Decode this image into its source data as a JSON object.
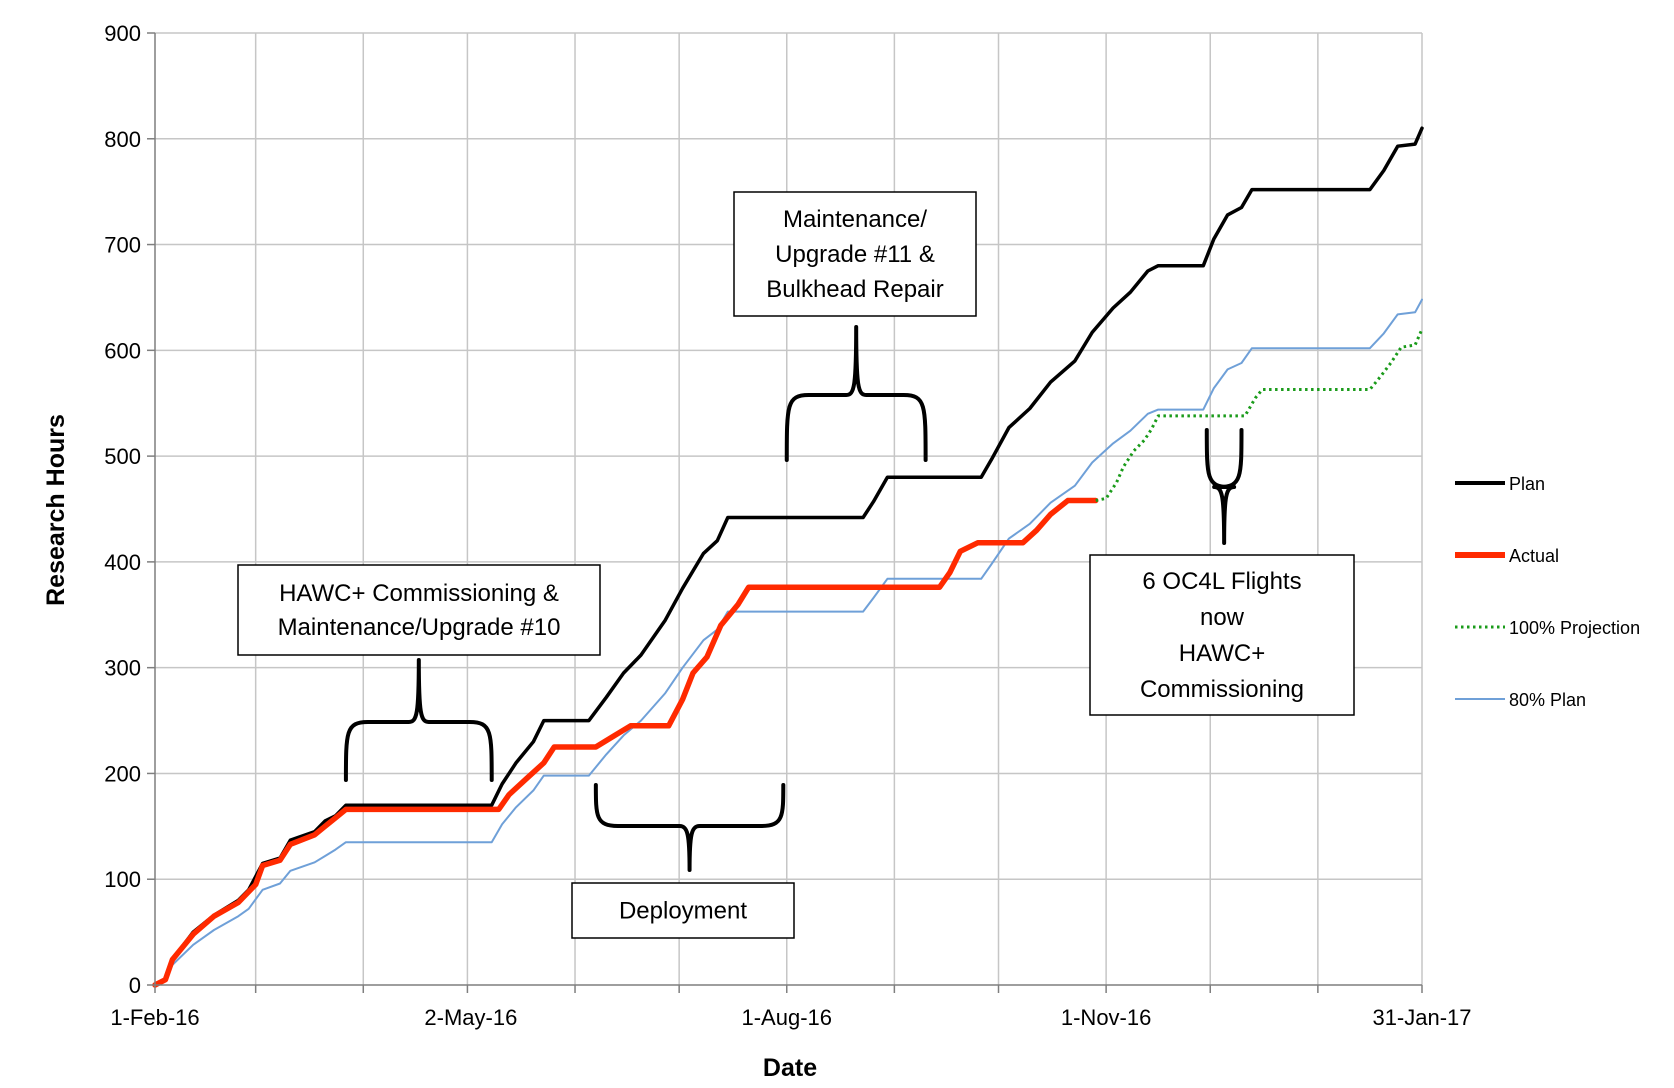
{
  "chart_data": {
    "type": "line",
    "xlabel": "Date",
    "ylabel": "Research Hours",
    "xlim": [
      "2016-02-01",
      "2017-01-31"
    ],
    "ylim": [
      0,
      900
    ],
    "y_ticks": [
      0,
      100,
      200,
      300,
      400,
      500,
      600,
      700,
      800,
      900
    ],
    "x_ticks": [
      {
        "date": "2016-02-01",
        "label": "1-Feb-16"
      },
      {
        "date": "2016-05-02",
        "label": "2-May-16"
      },
      {
        "date": "2016-08-01",
        "label": "1-Aug-16"
      },
      {
        "date": "2016-11-01",
        "label": "1-Nov-16"
      },
      {
        "date": "2017-01-31",
        "label": "31-Jan-17"
      }
    ],
    "grid": true,
    "legend_position": "right",
    "series": [
      {
        "name": "Plan",
        "color": "#000000",
        "style": "solid",
        "points": [
          [
            "2016-02-01",
            0
          ],
          [
            "2016-02-04",
            5
          ],
          [
            "2016-02-06",
            24
          ],
          [
            "2016-02-12",
            50
          ],
          [
            "2016-02-18",
            66
          ],
          [
            "2016-02-25",
            80
          ],
          [
            "2016-02-28",
            90
          ],
          [
            "2016-03-03",
            115
          ],
          [
            "2016-03-08",
            120
          ],
          [
            "2016-03-11",
            137
          ],
          [
            "2016-03-18",
            145
          ],
          [
            "2016-03-21",
            155
          ],
          [
            "2016-03-24",
            160
          ],
          [
            "2016-03-27",
            170
          ],
          [
            "2016-05-08",
            170
          ],
          [
            "2016-05-11",
            190
          ],
          [
            "2016-05-15",
            210
          ],
          [
            "2016-05-20",
            230
          ],
          [
            "2016-05-23",
            250
          ],
          [
            "2016-06-05",
            250
          ],
          [
            "2016-06-10",
            272
          ],
          [
            "2016-06-15",
            295
          ],
          [
            "2016-06-20",
            312
          ],
          [
            "2016-06-27",
            345
          ],
          [
            "2016-07-02",
            375
          ],
          [
            "2016-07-08",
            408
          ],
          [
            "2016-07-12",
            420
          ],
          [
            "2016-07-15",
            442
          ],
          [
            "2016-08-23",
            442
          ],
          [
            "2016-08-26",
            457
          ],
          [
            "2016-08-30",
            480
          ],
          [
            "2016-09-26",
            480
          ],
          [
            "2016-09-29",
            497
          ],
          [
            "2016-10-04",
            527
          ],
          [
            "2016-10-10",
            545
          ],
          [
            "2016-10-16",
            570
          ],
          [
            "2016-10-23",
            590
          ],
          [
            "2016-10-28",
            617
          ],
          [
            "2016-11-03",
            640
          ],
          [
            "2016-11-08",
            655
          ],
          [
            "2016-11-13",
            675
          ],
          [
            "2016-11-16",
            680
          ],
          [
            "2016-11-29",
            680
          ],
          [
            "2016-12-02",
            705
          ],
          [
            "2016-12-06",
            728
          ],
          [
            "2016-12-10",
            735
          ],
          [
            "2016-12-13",
            752
          ],
          [
            "2017-01-16",
            752
          ],
          [
            "2017-01-20",
            770
          ],
          [
            "2017-01-24",
            793
          ],
          [
            "2017-01-29",
            795
          ],
          [
            "2017-01-31",
            810
          ]
        ]
      },
      {
        "name": "Actual",
        "color": "#ff2a00",
        "style": "solid",
        "points": [
          [
            "2016-02-01",
            0
          ],
          [
            "2016-02-04",
            5
          ],
          [
            "2016-02-06",
            24
          ],
          [
            "2016-02-12",
            48
          ],
          [
            "2016-02-18",
            65
          ],
          [
            "2016-02-25",
            78
          ],
          [
            "2016-03-01",
            95
          ],
          [
            "2016-03-03",
            113
          ],
          [
            "2016-03-08",
            118
          ],
          [
            "2016-03-11",
            133
          ],
          [
            "2016-03-18",
            142
          ],
          [
            "2016-03-21",
            150
          ],
          [
            "2016-03-24",
            158
          ],
          [
            "2016-03-27",
            166
          ],
          [
            "2016-05-10",
            166
          ],
          [
            "2016-05-13",
            180
          ],
          [
            "2016-05-18",
            195
          ],
          [
            "2016-05-23",
            210
          ],
          [
            "2016-05-26",
            225
          ],
          [
            "2016-06-07",
            225
          ],
          [
            "2016-06-12",
            235
          ],
          [
            "2016-06-17",
            245
          ],
          [
            "2016-06-28",
            245
          ],
          [
            "2016-07-02",
            270
          ],
          [
            "2016-07-05",
            295
          ],
          [
            "2016-07-09",
            310
          ],
          [
            "2016-07-13",
            340
          ],
          [
            "2016-07-18",
            360
          ],
          [
            "2016-07-21",
            376
          ],
          [
            "2016-09-14",
            376
          ],
          [
            "2016-09-17",
            390
          ],
          [
            "2016-09-20",
            410
          ],
          [
            "2016-09-25",
            418
          ],
          [
            "2016-10-08",
            418
          ],
          [
            "2016-10-12",
            430
          ],
          [
            "2016-10-16",
            445
          ],
          [
            "2016-10-21",
            458
          ],
          [
            "2016-10-29",
            458
          ]
        ]
      },
      {
        "name": "100% Projection",
        "color": "#1a9b1a",
        "style": "dotted",
        "points": [
          [
            "2016-10-29",
            458
          ],
          [
            "2016-11-01",
            460
          ],
          [
            "2016-11-04",
            475
          ],
          [
            "2016-11-06",
            490
          ],
          [
            "2016-11-09",
            505
          ],
          [
            "2016-11-12",
            515
          ],
          [
            "2016-11-14",
            525
          ],
          [
            "2016-11-16",
            538
          ],
          [
            "2016-12-11",
            538
          ],
          [
            "2016-12-14",
            555
          ],
          [
            "2016-12-16",
            563
          ],
          [
            "2017-01-16",
            563
          ],
          [
            "2017-01-19",
            575
          ],
          [
            "2017-01-22",
            588
          ],
          [
            "2017-01-25",
            603
          ],
          [
            "2017-01-29",
            605
          ],
          [
            "2017-01-31",
            620
          ]
        ]
      },
      {
        "name": "80% Plan",
        "color": "#6fa0d8",
        "style": "solid",
        "points": [
          [
            "2016-02-01",
            0
          ],
          [
            "2016-02-04",
            4
          ],
          [
            "2016-02-06",
            19
          ],
          [
            "2016-02-12",
            38
          ],
          [
            "2016-02-18",
            52
          ],
          [
            "2016-02-25",
            65
          ],
          [
            "2016-02-28",
            72
          ],
          [
            "2016-03-03",
            90
          ],
          [
            "2016-03-08",
            96
          ],
          [
            "2016-03-11",
            108
          ],
          [
            "2016-03-18",
            116
          ],
          [
            "2016-03-21",
            122
          ],
          [
            "2016-03-24",
            128
          ],
          [
            "2016-03-27",
            135
          ],
          [
            "2016-05-08",
            135
          ],
          [
            "2016-05-11",
            152
          ],
          [
            "2016-05-15",
            168
          ],
          [
            "2016-05-20",
            184
          ],
          [
            "2016-05-23",
            198
          ],
          [
            "2016-06-05",
            198
          ],
          [
            "2016-06-10",
            218
          ],
          [
            "2016-06-15",
            236
          ],
          [
            "2016-06-20",
            250
          ],
          [
            "2016-06-27",
            276
          ],
          [
            "2016-07-02",
            300
          ],
          [
            "2016-07-08",
            326
          ],
          [
            "2016-07-12",
            336
          ],
          [
            "2016-07-15",
            353
          ],
          [
            "2016-08-23",
            353
          ],
          [
            "2016-08-26",
            366
          ],
          [
            "2016-08-30",
            384
          ],
          [
            "2016-09-26",
            384
          ],
          [
            "2016-09-29",
            398
          ],
          [
            "2016-10-04",
            422
          ],
          [
            "2016-10-10",
            436
          ],
          [
            "2016-10-16",
            456
          ],
          [
            "2016-10-23",
            472
          ],
          [
            "2016-10-28",
            494
          ],
          [
            "2016-11-03",
            512
          ],
          [
            "2016-11-08",
            524
          ],
          [
            "2016-11-13",
            540
          ],
          [
            "2016-11-16",
            544
          ],
          [
            "2016-11-29",
            544
          ],
          [
            "2016-12-02",
            564
          ],
          [
            "2016-12-06",
            582
          ],
          [
            "2016-12-10",
            588
          ],
          [
            "2016-12-13",
            602
          ],
          [
            "2017-01-16",
            602
          ],
          [
            "2017-01-20",
            616
          ],
          [
            "2017-01-24",
            634
          ],
          [
            "2017-01-29",
            636
          ],
          [
            "2017-01-31",
            648
          ]
        ]
      }
    ],
    "annotations": [
      {
        "lines": [
          "HAWC+ Commissioning  &",
          "Maintenance/Upgrade #10"
        ],
        "brace": {
          "from": "2016-03-27",
          "to": "2016-05-08",
          "orientation": "up"
        }
      },
      {
        "lines": [
          "Deployment"
        ],
        "brace": {
          "from": "2016-06-07",
          "to": "2016-07-31",
          "orientation": "down"
        }
      },
      {
        "lines": [
          "Maintenance/",
          "Upgrade #11 &",
          "Bulkhead Repair"
        ],
        "brace": {
          "from": "2016-08-01",
          "to": "2016-09-10",
          "orientation": "up"
        }
      },
      {
        "lines": [
          "6 OC4L Flights",
          "now",
          "HAWC+",
          "Commissioning"
        ],
        "brace": {
          "from": "2016-11-30",
          "to": "2016-12-10",
          "orientation": "down"
        }
      }
    ]
  }
}
